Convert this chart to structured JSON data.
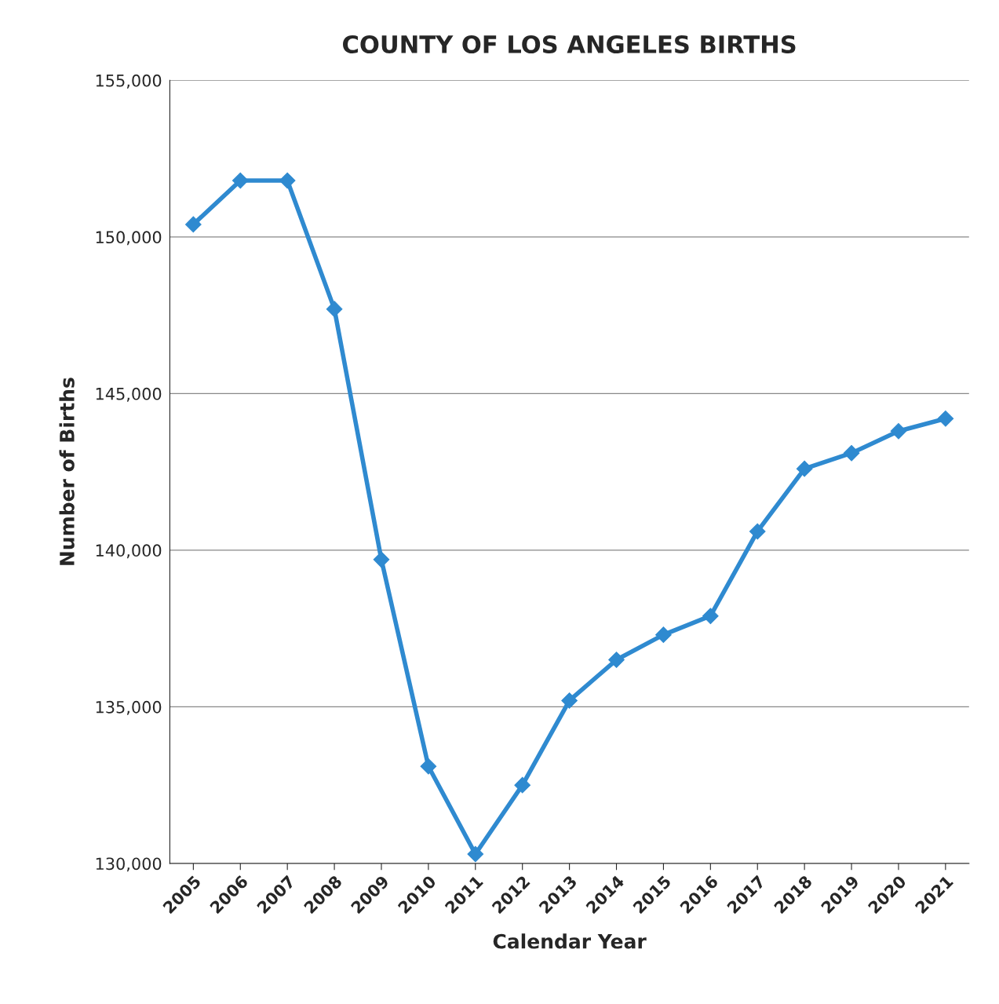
{
  "chart_data": {
    "type": "line",
    "title": "COUNTY OF LOS ANGELES BIRTHS",
    "xlabel": "Calendar Year",
    "ylabel": "Number of Births",
    "categories": [
      "2005",
      "2006",
      "2007",
      "2008",
      "2009",
      "2010",
      "2011",
      "2012",
      "2013",
      "2014",
      "2015",
      "2016",
      "2017",
      "2018",
      "2019",
      "2020",
      "2021"
    ],
    "series": [
      {
        "color": "#2f8ad0",
        "values": [
          150400,
          151800,
          151800,
          147700,
          139700,
          133100,
          130300,
          132500,
          135200,
          136500,
          137300,
          137900,
          140600,
          142600,
          143100,
          143800,
          144200
        ]
      }
    ],
    "ylim": [
      130000,
      155000
    ],
    "yticks": [
      {
        "value": 130000,
        "label": "130,000"
      },
      {
        "value": 135000,
        "label": "135,000"
      },
      {
        "value": 140000,
        "label": "140,000"
      },
      {
        "value": 145000,
        "label": "145,000"
      },
      {
        "value": 150000,
        "label": "150,000"
      },
      {
        "value": 155000,
        "label": "155,000"
      }
    ],
    "grid": "y",
    "marker": "diamond",
    "line_style": "solid",
    "legend": false
  }
}
